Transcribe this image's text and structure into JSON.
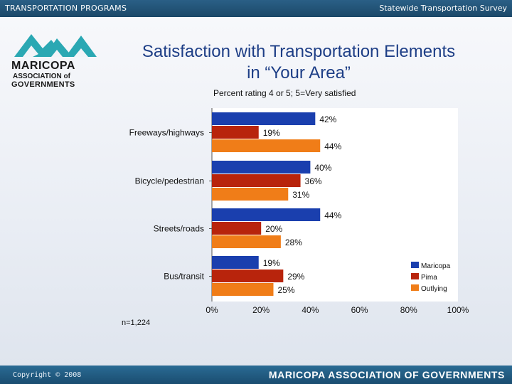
{
  "header": {
    "left": "TRANSPORTATION PROGRAMS",
    "right": "Statewide Transportation Survey"
  },
  "logo": {
    "line1": "MARICOPA",
    "line2": "ASSOCIATION of",
    "line3": "GOVERNMENTS"
  },
  "title_line1": "Satisfaction with Transportation Elements",
  "title_line2": "in “Your Area”",
  "subtitle": "Percent rating 4 or 5; 5=Very satisfied",
  "note": "n=1,224",
  "footer": {
    "copyright": "Copyright © 2008",
    "org": "MARICOPA ASSOCIATION OF GOVERNMENTS"
  },
  "colors": {
    "maricopa": "#1a3fae",
    "pima": "#b8240c",
    "outlying": "#f07d18"
  },
  "chart_data": {
    "type": "bar",
    "orientation": "horizontal",
    "title": "Satisfaction with Transportation Elements in “Your Area”",
    "subtitle": "Percent rating 4 or 5; 5=Very satisfied",
    "categories": [
      "Freeways/highways",
      "Bicycle/pedestrian",
      "Streets/roads",
      "Bus/transit"
    ],
    "series": [
      {
        "name": "Maricopa",
        "values": [
          42,
          40,
          44,
          19
        ],
        "labels": [
          "42%",
          "40%",
          "44%",
          "19%"
        ]
      },
      {
        "name": "Pima",
        "values": [
          19,
          36,
          20,
          29
        ],
        "labels": [
          "19%",
          "36%",
          "20%",
          "29%"
        ]
      },
      {
        "name": "Outlying",
        "values": [
          44,
          31,
          28,
          25
        ],
        "labels": [
          "44%",
          "31%",
          "28%",
          "25%"
        ]
      }
    ],
    "xlim": [
      0,
      100
    ],
    "xticks": [
      "0%",
      "20%",
      "40%",
      "60%",
      "80%",
      "100%"
    ],
    "legend": "bottom-right",
    "grid": false
  }
}
